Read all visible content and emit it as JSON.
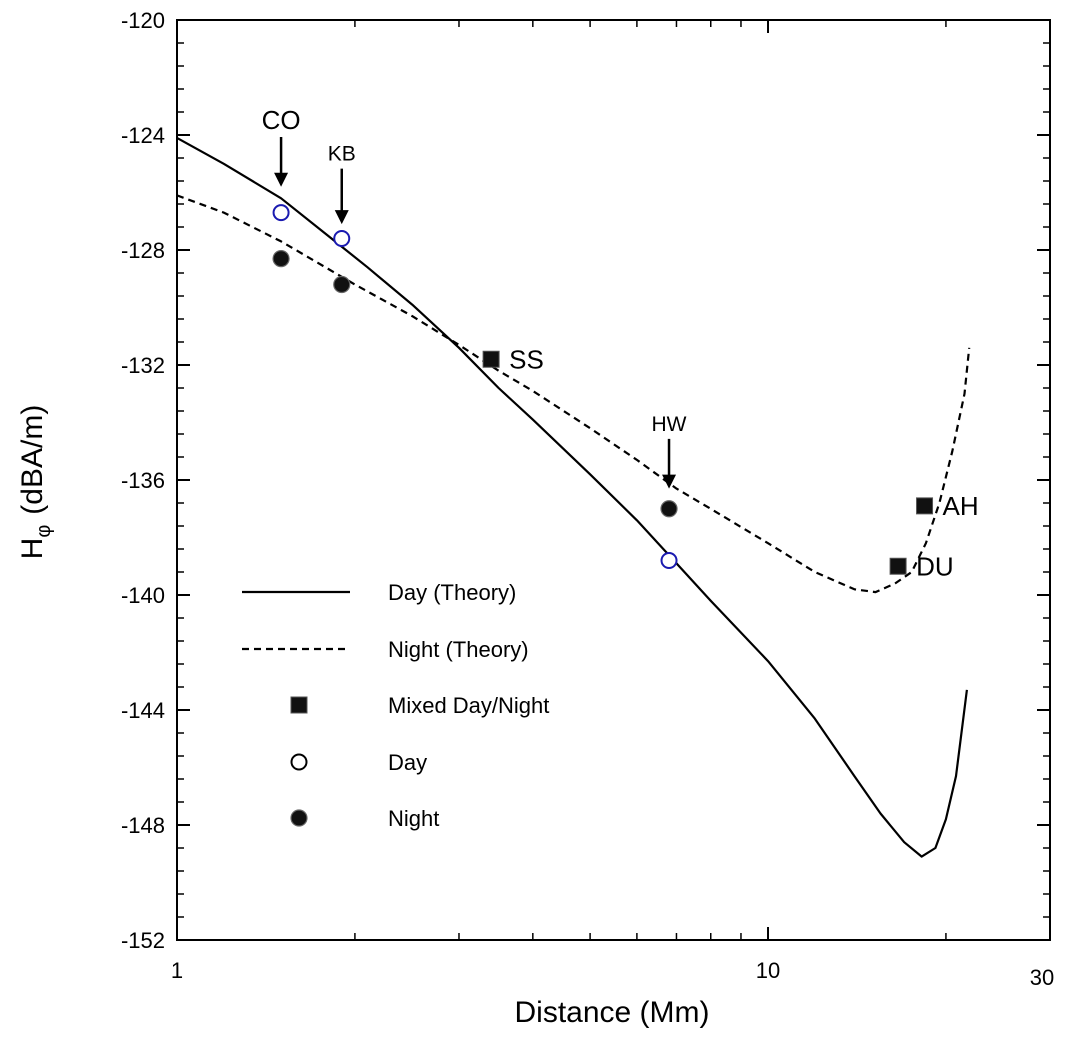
{
  "chart_data": {
    "type": "scatter",
    "xlabel": "Distance  (Mm)",
    "ylabel_main": "H",
    "ylabel_sub": "φ",
    "ylabel_unit": "(dBA/m)",
    "x_scale": "log",
    "xlim": [
      1,
      30
    ],
    "ylim": [
      -152,
      -120
    ],
    "x_tick_labels": [
      "1",
      "10",
      "30"
    ],
    "y_ticks": [
      -120,
      -124,
      -128,
      -132,
      -136,
      -140,
      -144,
      -148,
      -152
    ],
    "y_tick_labels": [
      "-120",
      "-124",
      "-128",
      "-132",
      "-136",
      "-140",
      "-144",
      "-148",
      "-152"
    ],
    "grid": false,
    "legend_position": "bottom-left",
    "legend": [
      {
        "label": "Day  (Theory)",
        "marker": "solid-line"
      },
      {
        "label": "Night  (Theory)",
        "marker": "dashed-line"
      },
      {
        "label": "Mixed Day/Night",
        "marker": "filled-square"
      },
      {
        "label": "Day",
        "marker": "open-circle"
      },
      {
        "label": "Night",
        "marker": "filled-circle"
      }
    ],
    "series": [
      {
        "name": "Day  (Theory)",
        "kind": "line",
        "style": "solid",
        "color": "#000000",
        "points": [
          [
            1.0,
            -124.1
          ],
          [
            1.2,
            -125.0
          ],
          [
            1.5,
            -126.2
          ],
          [
            1.8,
            -127.5
          ],
          [
            2.1,
            -128.6
          ],
          [
            2.5,
            -129.9
          ],
          [
            3.0,
            -131.4
          ],
          [
            3.5,
            -132.8
          ],
          [
            4.0,
            -133.9
          ],
          [
            5.0,
            -135.8
          ],
          [
            6.0,
            -137.4
          ],
          [
            7.0,
            -138.9
          ],
          [
            8.0,
            -140.2
          ],
          [
            10.0,
            -142.3
          ],
          [
            12.0,
            -144.3
          ],
          [
            14.0,
            -146.3
          ],
          [
            15.5,
            -147.6
          ],
          [
            17.0,
            -148.6
          ],
          [
            18.2,
            -149.1
          ],
          [
            19.2,
            -148.8
          ],
          [
            20.0,
            -147.8
          ],
          [
            20.8,
            -146.3
          ],
          [
            21.7,
            -143.3
          ]
        ]
      },
      {
        "name": "Night  (Theory)",
        "kind": "line",
        "style": "dashed",
        "color": "#000000",
        "points": [
          [
            1.0,
            -126.1
          ],
          [
            1.2,
            -126.7
          ],
          [
            1.5,
            -127.7
          ],
          [
            2.0,
            -129.2
          ],
          [
            2.5,
            -130.3
          ],
          [
            3.0,
            -131.3
          ],
          [
            3.5,
            -132.2
          ],
          [
            4.0,
            -132.9
          ],
          [
            5.0,
            -134.2
          ],
          [
            6.0,
            -135.3
          ],
          [
            7.0,
            -136.3
          ],
          [
            8.0,
            -137.0
          ],
          [
            10.0,
            -138.2
          ],
          [
            12.0,
            -139.2
          ],
          [
            14.0,
            -139.8
          ],
          [
            15.2,
            -139.9
          ],
          [
            16.4,
            -139.6
          ],
          [
            17.5,
            -139.2
          ],
          [
            18.5,
            -138.2
          ],
          [
            19.5,
            -136.8
          ],
          [
            20.5,
            -135.0
          ],
          [
            21.5,
            -133.0
          ],
          [
            21.9,
            -131.4
          ]
        ]
      },
      {
        "name": "Mixed Day/Night",
        "kind": "marker",
        "marker": "filled-square",
        "color": "#000000",
        "points": [
          [
            3.4,
            -131.8
          ],
          [
            16.6,
            -139.0
          ],
          [
            18.4,
            -136.9
          ]
        ]
      },
      {
        "name": "Day",
        "kind": "marker",
        "marker": "open-circle",
        "color": "#1a1ab0",
        "points": [
          [
            1.5,
            -126.7
          ],
          [
            1.9,
            -127.6
          ],
          [
            6.8,
            -138.8
          ]
        ]
      },
      {
        "name": "Night",
        "kind": "marker",
        "marker": "filled-circle",
        "color": "#000000",
        "points": [
          [
            1.5,
            -128.3
          ],
          [
            1.9,
            -129.2
          ],
          [
            6.8,
            -137.0
          ]
        ]
      }
    ],
    "annotations": [
      {
        "text": "CO",
        "x": 1.5,
        "y": -124.0,
        "size": "big",
        "arrow": true,
        "arrow_to_y": -125.8
      },
      {
        "text": "KB",
        "x": 1.9,
        "y": -125.1,
        "size": "small",
        "arrow": true,
        "arrow_to_y": -127.1
      },
      {
        "text": "HW",
        "x": 6.8,
        "y": -134.5,
        "size": "small",
        "arrow": true,
        "arrow_to_y": -136.3
      },
      {
        "text": "SS",
        "x": 3.4,
        "y": -131.8,
        "size": "big",
        "arrow": false
      },
      {
        "text": "DU",
        "x": 16.6,
        "y": -139.0,
        "size": "big",
        "arrow": false
      },
      {
        "text": "AH",
        "x": 18.4,
        "y": -136.9,
        "size": "big",
        "arrow": false
      }
    ]
  }
}
